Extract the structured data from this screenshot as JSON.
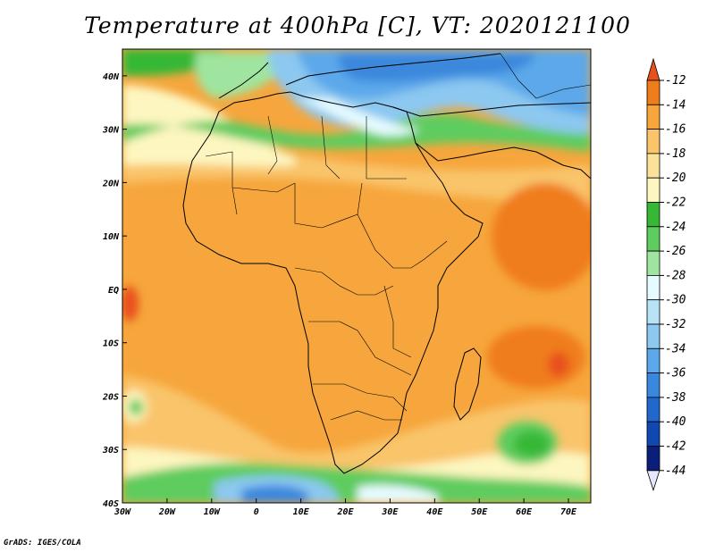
{
  "title": "Temperature at 400hPa [C], VT: 2020121100",
  "credit": "GrADS: IGES/COLA",
  "map": {
    "region": "Africa",
    "lon_range": [
      -30,
      75
    ],
    "lat_range": [
      -40,
      45
    ],
    "x_ticks": [
      "30W",
      "20W",
      "10W",
      "0",
      "10E",
      "20E",
      "30E",
      "40E",
      "50E",
      "60E",
      "70E"
    ],
    "y_ticks": [
      "40N",
      "30N",
      "20N",
      "10N",
      "EQ",
      "10S",
      "20S",
      "30S",
      "40S"
    ],
    "fill_description_colors": {
      "north_cold": "#3a78d8",
      "green_band": "#4cbf4c",
      "tropics": "#f6a63c"
    }
  },
  "colorbar": {
    "labels": [
      "-12",
      "-14",
      "-16",
      "-18",
      "-20",
      "-22",
      "-24",
      "-26",
      "-28",
      "-30",
      "-32",
      "-34",
      "-36",
      "-38",
      "-40",
      "-42",
      "-44"
    ],
    "colors": [
      "#e8501c",
      "#f07d1c",
      "#f6a63c",
      "#f9c46a",
      "#fbe29a",
      "#fdf6c0",
      "#36b836",
      "#5fcc5f",
      "#9fe59f",
      "#e6fbff",
      "#b8e2f6",
      "#8cc8f0",
      "#5ba8ea",
      "#3a88dd",
      "#2268cc",
      "#0e48b0",
      "#0a1e7a"
    ],
    "top_triangle_color": "#e8501c",
    "bottom_triangle_color": "#e6e6ff"
  }
}
